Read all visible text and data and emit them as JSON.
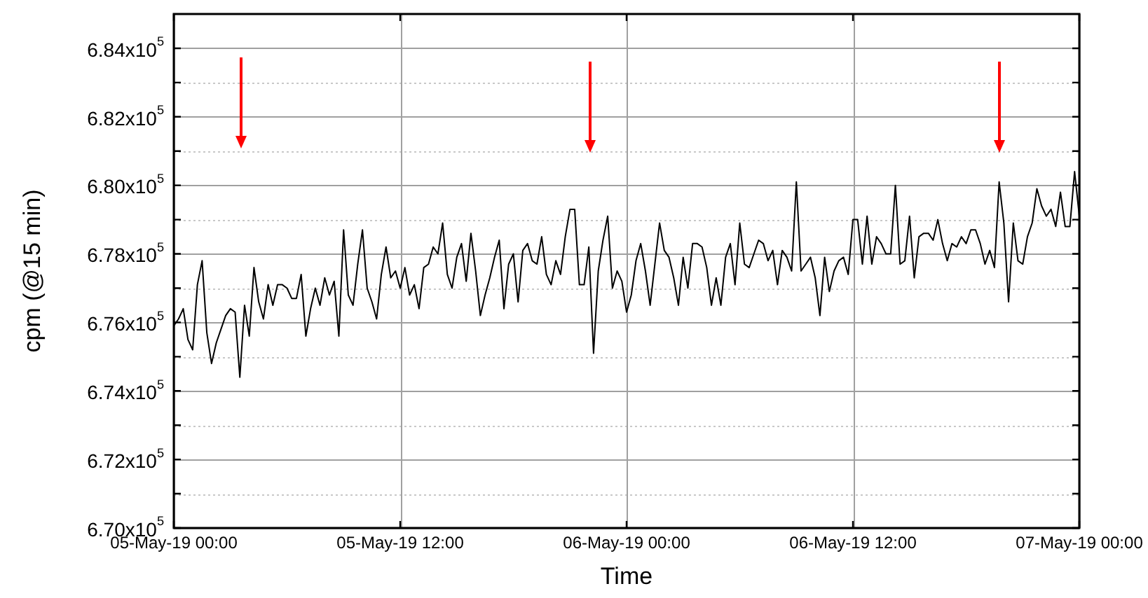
{
  "chart_data": {
    "type": "line",
    "xlabel": "Time",
    "ylabel": "cpm (@15 min)",
    "grid": true,
    "marker": "none",
    "line_style": "solid",
    "xlim": [
      "--05-05T00:00",
      "--05-07T00:00"
    ],
    "xticks": [
      {
        "value": "--05-05T00:00",
        "label": "05-May-19 00:00"
      },
      {
        "value": "--05-05T12:00",
        "label": "05-May-19 12:00"
      },
      {
        "value": "--05-06T00:00",
        "label": "06-May-19 00:00"
      },
      {
        "value": "--05-06T12:00",
        "label": "06-May-19 12:00"
      },
      {
        "value": "--05-07T00:00",
        "label": "07-May-19 00:00"
      }
    ],
    "ylim": [
      670000,
      685000
    ],
    "yticks": [
      {
        "value": 670000,
        "label": "6.70x10$^{5}$"
      },
      {
        "value": 671000,
        "label": null
      },
      {
        "value": 672000,
        "label": "6.72x10$^{5}$"
      },
      {
        "value": 673000,
        "label": null
      },
      {
        "value": 674000,
        "label": "6.74x10$^{5}$"
      },
      {
        "value": 675000,
        "label": null
      },
      {
        "value": 676000,
        "label": "6.76x10$^{5}$"
      },
      {
        "value": 677000,
        "label": null
      },
      {
        "value": 678000,
        "label": "6.78x10$^{5}$"
      },
      {
        "value": 679000,
        "label": null
      },
      {
        "value": 680000,
        "label": "6.80x10$^{5}$"
      },
      {
        "value": 681000,
        "label": null
      },
      {
        "value": 682000,
        "label": "6.82x10$^{5}$"
      },
      {
        "value": 683000,
        "label": null
      },
      {
        "value": 684000,
        "label": "6.84x10$^{5}$"
      }
    ],
    "x": [
      "--05-05T00:00",
      "--05-05T00:15",
      "--05-05T00:30",
      "--05-05T00:45",
      "--05-05T01:00",
      "--05-05T01:15",
      "--05-05T01:30",
      "--05-05T01:45",
      "--05-05T02:00",
      "--05-05T02:15",
      "--05-05T02:30",
      "--05-05T02:45",
      "--05-05T03:00",
      "--05-05T03:15",
      "--05-05T03:30",
      "--05-05T03:45",
      "--05-05T04:00",
      "--05-05T04:15",
      "--05-05T04:30",
      "--05-05T04:45",
      "--05-05T05:00",
      "--05-05T05:15",
      "--05-05T05:30",
      "--05-05T05:45",
      "--05-05T06:00",
      "--05-05T06:15",
      "--05-05T06:30",
      "--05-05T06:45",
      "--05-05T07:00",
      "--05-05T07:15",
      "--05-05T07:30",
      "--05-05T07:45",
      "--05-05T08:00",
      "--05-05T08:15",
      "--05-05T08:30",
      "--05-05T08:45",
      "--05-05T09:00",
      "--05-05T09:15",
      "--05-05T09:30",
      "--05-05T09:45",
      "--05-05T10:00",
      "--05-05T10:15",
      "--05-05T10:30",
      "--05-05T10:45",
      "--05-05T11:00",
      "--05-05T11:15",
      "--05-05T11:30",
      "--05-05T11:45",
      "--05-05T12:00",
      "--05-05T12:15",
      "--05-05T12:30",
      "--05-05T12:45",
      "--05-05T13:00",
      "--05-05T13:15",
      "--05-05T13:30",
      "--05-05T13:45",
      "--05-05T14:00",
      "--05-05T14:15",
      "--05-05T14:30",
      "--05-05T14:45",
      "--05-05T15:00",
      "--05-05T15:15",
      "--05-05T15:30",
      "--05-05T15:45",
      "--05-05T16:00",
      "--05-05T16:15",
      "--05-05T16:30",
      "--05-05T16:45",
      "--05-05T17:00",
      "--05-05T17:15",
      "--05-05T17:30",
      "--05-05T17:45",
      "--05-05T18:00",
      "--05-05T18:15",
      "--05-05T18:30",
      "--05-05T18:45",
      "--05-05T19:00",
      "--05-05T19:15",
      "--05-05T19:30",
      "--05-05T19:45",
      "--05-05T20:00",
      "--05-05T20:15",
      "--05-05T20:30",
      "--05-05T20:45",
      "--05-05T21:00",
      "--05-05T21:15",
      "--05-05T21:30",
      "--05-05T21:45",
      "--05-05T22:00",
      "--05-05T22:15",
      "--05-05T22:30",
      "--05-05T22:45",
      "--05-05T23:00",
      "--05-05T23:15",
      "--05-05T23:30",
      "--05-05T23:45",
      "--05-06T00:00",
      "--05-06T00:15",
      "--05-06T00:30",
      "--05-06T00:45",
      "--05-06T01:00",
      "--05-06T01:15",
      "--05-06T01:30",
      "--05-06T01:45",
      "--05-06T02:00",
      "--05-06T02:15",
      "--05-06T02:30",
      "--05-06T02:45",
      "--05-06T03:00",
      "--05-06T03:15",
      "--05-06T03:30",
      "--05-06T03:45",
      "--05-06T04:00",
      "--05-06T04:15",
      "--05-06T04:30",
      "--05-06T04:45",
      "--05-06T05:00",
      "--05-06T05:15",
      "--05-06T05:30",
      "--05-06T05:45",
      "--05-06T06:00",
      "--05-06T06:15",
      "--05-06T06:30",
      "--05-06T06:45",
      "--05-06T07:00",
      "--05-06T07:15",
      "--05-06T07:30",
      "--05-06T07:45",
      "--05-06T08:00",
      "--05-06T08:15",
      "--05-06T08:30",
      "--05-06T08:45",
      "--05-06T09:00",
      "--05-06T09:15",
      "--05-06T09:30",
      "--05-06T09:45",
      "--05-06T10:00",
      "--05-06T10:15",
      "--05-06T10:30",
      "--05-06T10:45",
      "--05-06T11:00",
      "--05-06T11:15",
      "--05-06T11:30",
      "--05-06T11:45",
      "--05-06T12:00",
      "--05-06T12:15",
      "--05-06T12:30",
      "--05-06T12:45",
      "--05-06T13:00",
      "--05-06T13:15",
      "--05-06T13:30",
      "--05-06T13:45",
      "--05-06T14:00",
      "--05-06T14:15",
      "--05-06T14:30",
      "--05-06T14:45",
      "--05-06T15:00",
      "--05-06T15:15",
      "--05-06T15:30",
      "--05-06T15:45",
      "--05-06T16:00",
      "--05-06T16:15",
      "--05-06T16:30",
      "--05-06T16:45",
      "--05-06T17:00",
      "--05-06T17:15",
      "--05-06T17:30",
      "--05-06T17:45",
      "--05-06T18:00",
      "--05-06T18:15",
      "--05-06T18:30",
      "--05-06T18:45",
      "--05-06T19:00",
      "--05-06T19:15",
      "--05-06T19:30",
      "--05-06T19:45",
      "--05-06T20:00",
      "--05-06T20:15",
      "--05-06T20:30",
      "--05-06T20:45",
      "--05-06T21:00",
      "--05-06T21:15",
      "--05-06T21:30",
      "--05-06T21:45",
      "--05-06T22:00",
      "--05-06T22:15",
      "--05-06T22:30",
      "--05-06T22:45",
      "--05-06T23:00",
      "--05-06T23:15",
      "--05-06T23:30",
      "--05-06T23:45",
      "--05-07T00:00"
    ],
    "series": [
      {
        "color": "#000000",
        "values": [
          675900,
          676100,
          676400,
          675500,
          675200,
          677100,
          677800,
          675700,
          674800,
          675400,
          675800,
          676200,
          676400,
          676300,
          674400,
          676500,
          675600,
          677600,
          676600,
          676100,
          677100,
          676500,
          677100,
          677100,
          677000,
          676700,
          676700,
          677400,
          675600,
          676400,
          677000,
          676500,
          677300,
          676800,
          677200,
          675600,
          678700,
          676800,
          676500,
          677700,
          678700,
          677000,
          676600,
          676100,
          677400,
          678200,
          677300,
          677500,
          677000,
          677600,
          676800,
          677100,
          676400,
          677600,
          677700,
          678200,
          678000,
          678900,
          677400,
          677000,
          677900,
          678300,
          677200,
          678600,
          677500,
          676200,
          676800,
          677300,
          677900,
          678400,
          676400,
          677700,
          678000,
          676600,
          678100,
          678300,
          677800,
          677700,
          678500,
          677400,
          677100,
          677800,
          677400,
          678500,
          679300,
          679300,
          677100,
          677100,
          678200,
          675100,
          677500,
          678400,
          679100,
          677000,
          677500,
          677200,
          676300,
          676800,
          677800,
          678300,
          677500,
          676500,
          677700,
          678900,
          678100,
          677900,
          677300,
          676500,
          677900,
          677000,
          678300,
          678300,
          678200,
          677600,
          676500,
          677300,
          676500,
          677900,
          678300,
          677100,
          678900,
          677700,
          677600,
          678000,
          678400,
          678300,
          677800,
          678100,
          677100,
          678100,
          677900,
          677500,
          680100,
          677500,
          677700,
          677900,
          677300,
          676200,
          677900,
          676900,
          677500,
          677800,
          677900,
          677400,
          679000,
          679000,
          677700,
          679100,
          677700,
          678500,
          678300,
          678000,
          678000,
          680000,
          677700,
          677800,
          679100,
          677300,
          678500,
          678600,
          678600,
          678400,
          679000,
          678300,
          677800,
          678300,
          678200,
          678500,
          678300,
          678700,
          678700,
          678300,
          677700,
          678100,
          677600,
          680100,
          678900,
          676600,
          678900,
          677800,
          677700,
          678500,
          678900,
          679900,
          679400,
          679100,
          679300,
          678800,
          679800,
          678800,
          678800,
          680400,
          679100
        ]
      }
    ]
  }
}
